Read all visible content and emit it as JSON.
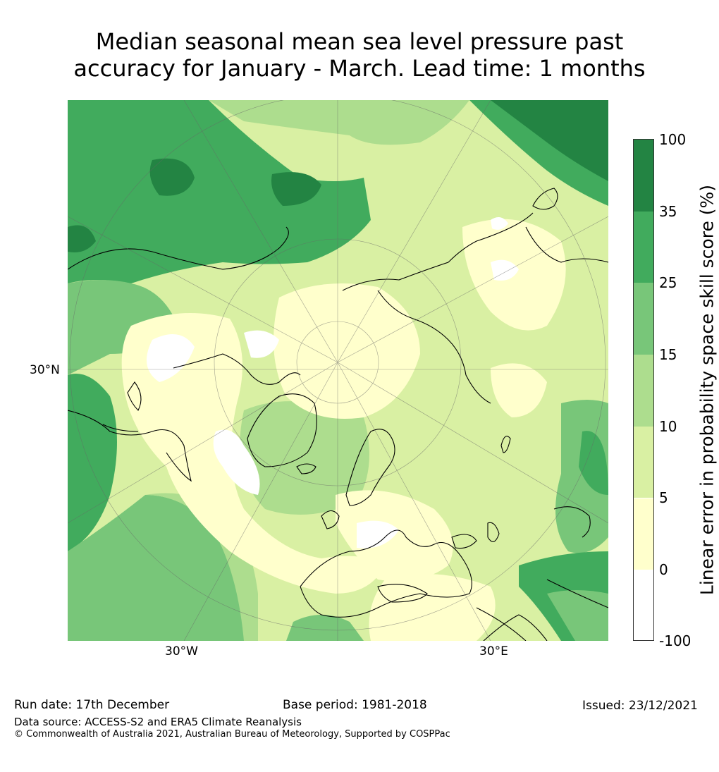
{
  "title": {
    "line1": "Median seasonal mean sea level pressure past",
    "line2": "accuracy for January - March. Lead time: 1 months"
  },
  "map": {
    "projection": "north-polar-stereographic",
    "labels": {
      "lat_30n": "30°N",
      "lon_30w": "30°W",
      "lon_30e": "30°E"
    },
    "colors": {
      "lt0": "#ffffff",
      "c0_5": "#ffffcc",
      "c5_10": "#d9f0a3",
      "c10_15": "#addd8e",
      "c15_25": "#78c679",
      "c25_35": "#41ab5d",
      "c35_100": "#238443"
    }
  },
  "colorbar": {
    "title": "Linear error in probability space skill score (%)",
    "ticks": [
      "100",
      "35",
      "25",
      "15",
      "10",
      "5",
      "0",
      "-100"
    ],
    "colors": [
      "#238443",
      "#41ab5d",
      "#78c679",
      "#addd8e",
      "#d9f0a3",
      "#ffffcc",
      "#ffffff"
    ]
  },
  "footer": {
    "run_date": "Run date: 17th December",
    "base_period": "Base period: 1981-2018",
    "issued": "Issued: 23/12/2021",
    "data_source": "Data source: ACCESS-S2 and ERA5 Climate Reanalysis",
    "copyright": "© Commonwealth of Australia 2021, Australian Bureau of Meteorology, Supported by COSPPac"
  }
}
